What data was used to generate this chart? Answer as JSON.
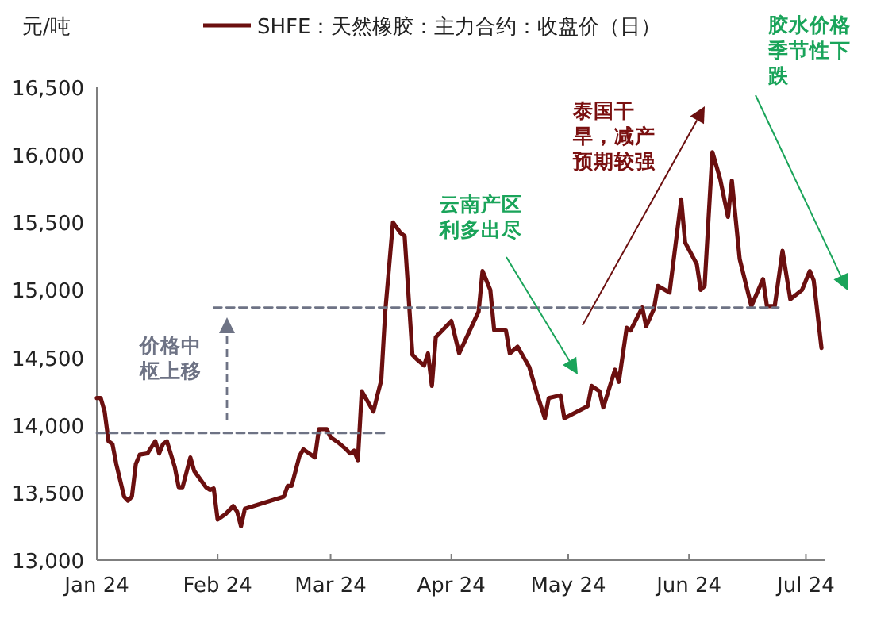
{
  "chart_data": {
    "type": "line",
    "ylabel": "元/吨",
    "legend": "top",
    "xlim": [
      "2024-01-01",
      "2024-07-06"
    ],
    "xticks": [
      {
        "value": "2024-01-01",
        "label": "Jan 24"
      },
      {
        "value": "2024-02-01",
        "label": "Feb 24"
      },
      {
        "value": "2024-03-01",
        "label": "Mar 24"
      },
      {
        "value": "2024-04-01",
        "label": "Apr 24"
      },
      {
        "value": "2024-05-01",
        "label": "May 24"
      },
      {
        "value": "2024-06-01",
        "label": "Jun 24"
      },
      {
        "value": "2024-07-01",
        "label": "Jul 24"
      }
    ],
    "ylim": [
      13000,
      16500
    ],
    "yticks": [
      {
        "value": 13000,
        "label": "13,000"
      },
      {
        "value": 13500,
        "label": "13,500"
      },
      {
        "value": 14000,
        "label": "14,000"
      },
      {
        "value": 14500,
        "label": "14,500"
      },
      {
        "value": 15000,
        "label": "15,000"
      },
      {
        "value": 15500,
        "label": "15,500"
      },
      {
        "value": 16000,
        "label": "16,000"
      },
      {
        "value": 16500,
        "label": "16,500"
      }
    ],
    "series": [
      {
        "name": "SHFE：天然橡胶：主力合约：收盘价（日）",
        "color": "#6b0f0f",
        "line_style": "solid",
        "x": [
          "2024-01-01",
          "2024-01-02",
          "2024-01-03",
          "2024-01-04",
          "2024-01-05",
          "2024-01-06",
          "2024-01-08",
          "2024-01-09",
          "2024-01-10",
          "2024-01-11",
          "2024-01-12",
          "2024-01-14",
          "2024-01-16",
          "2024-01-17",
          "2024-01-18",
          "2024-01-19",
          "2024-01-21",
          "2024-01-22",
          "2024-01-23",
          "2024-01-25",
          "2024-01-26",
          "2024-01-29",
          "2024-01-30",
          "2024-01-31",
          "2024-02-01",
          "2024-02-03",
          "2024-02-05",
          "2024-02-06",
          "2024-02-07",
          "2024-02-08",
          "2024-02-18",
          "2024-02-19",
          "2024-02-20",
          "2024-02-22",
          "2024-02-23",
          "2024-02-26",
          "2024-02-27",
          "2024-02-29",
          "2024-03-01",
          "2024-03-03",
          "2024-03-05",
          "2024-03-06",
          "2024-03-07",
          "2024-03-08",
          "2024-03-09",
          "2024-03-12",
          "2024-03-13",
          "2024-03-14",
          "2024-03-15",
          "2024-03-17",
          "2024-03-19",
          "2024-03-20",
          "2024-03-22",
          "2024-03-23",
          "2024-03-25",
          "2024-03-26",
          "2024-03-27",
          "2024-03-28",
          "2024-04-01",
          "2024-04-03",
          "2024-04-08",
          "2024-04-09",
          "2024-04-11",
          "2024-04-12",
          "2024-04-15",
          "2024-04-16",
          "2024-04-18",
          "2024-04-21",
          "2024-04-23",
          "2024-04-25",
          "2024-04-26",
          "2024-04-29",
          "2024-04-30",
          "2024-05-06",
          "2024-05-07",
          "2024-05-09",
          "2024-05-10",
          "2024-05-13",
          "2024-05-14",
          "2024-05-16",
          "2024-05-17",
          "2024-05-20",
          "2024-05-21",
          "2024-05-23",
          "2024-05-24",
          "2024-05-27",
          "2024-05-30",
          "2024-05-31",
          "2024-06-03",
          "2024-06-04",
          "2024-06-05",
          "2024-06-07",
          "2024-06-09",
          "2024-06-11",
          "2024-06-12",
          "2024-06-14",
          "2024-06-17",
          "2024-06-20",
          "2024-06-21",
          "2024-06-23",
          "2024-06-25",
          "2024-06-27",
          "2024-06-30",
          "2024-07-02",
          "2024-07-03",
          "2024-07-05"
        ],
        "values": [
          14200,
          14200,
          14100,
          13880,
          13860,
          13710,
          13470,
          13440,
          13470,
          13710,
          13780,
          13790,
          13880,
          13790,
          13860,
          13880,
          13690,
          13540,
          13540,
          13760,
          13660,
          13540,
          13520,
          13530,
          13300,
          13340,
          13400,
          13360,
          13250,
          13380,
          13470,
          13550,
          13550,
          13770,
          13820,
          13760,
          13970,
          13970,
          13910,
          13870,
          13820,
          13790,
          13810,
          13740,
          14250,
          14100,
          14220,
          14330,
          14830,
          15500,
          15420,
          15400,
          14520,
          14490,
          14440,
          14530,
          14290,
          14650,
          14770,
          14530,
          14840,
          15140,
          15000,
          14700,
          14700,
          14530,
          14580,
          14430,
          14230,
          14050,
          14200,
          14220,
          14050,
          14140,
          14290,
          14250,
          14130,
          14410,
          14320,
          14720,
          14700,
          14870,
          14730,
          14860,
          15030,
          14980,
          15670,
          15350,
          15190,
          15000,
          15030,
          16020,
          15820,
          15540,
          15810,
          15230,
          14880,
          15080,
          14880,
          14880,
          15290,
          14930,
          15000,
          15140,
          15070,
          14570
        ]
      },
      {
        "color": "#6e7385",
        "line_style": "dashed",
        "x": [
          "2024-01-01",
          "2024-03-15"
        ],
        "values": [
          13940,
          13940
        ]
      },
      {
        "color": "#6e7385",
        "line_style": "dashed",
        "x": [
          "2024-01-31",
          "2024-06-24"
        ],
        "values": [
          14870,
          14870
        ]
      }
    ],
    "annotations": [
      "价格中枢上移",
      "云南产区利多出尽",
      "泰国干旱，减产预期较强",
      "胶水价格季节性下跌"
    ]
  }
}
